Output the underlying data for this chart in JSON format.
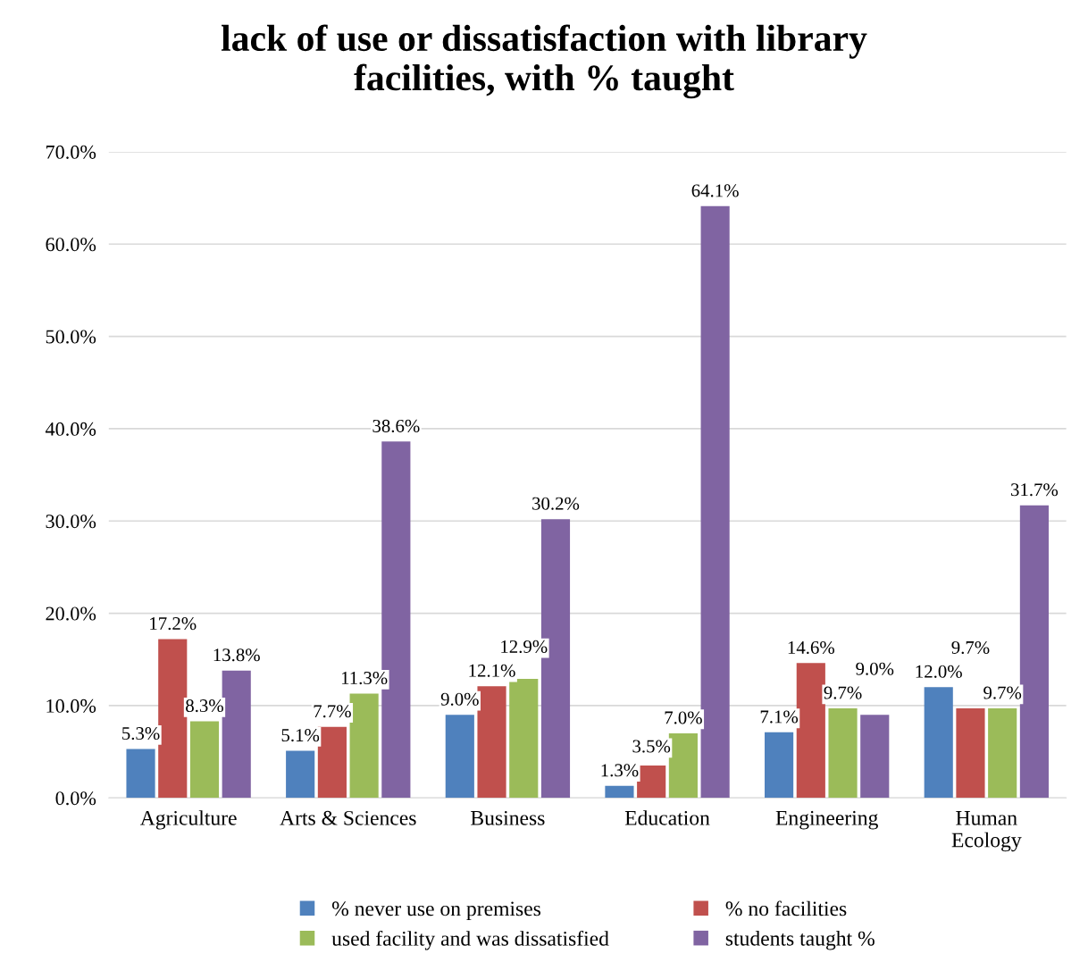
{
  "chart_data": {
    "type": "bar",
    "title": "lack of use or dissatisfaction with library\nfacilities, with % taught",
    "categories": [
      "Agriculture",
      "Arts & Sciences",
      "Business",
      "Education",
      "Engineering",
      "Human\nEcology"
    ],
    "series": [
      {
        "name": "% never use on premises",
        "color": "#4f81bd",
        "values": [
          5.3,
          5.1,
          9.0,
          1.3,
          7.1,
          12.0
        ],
        "value_labels": [
          "5.3%",
          "5.1%",
          "9.0%",
          "1.3%",
          "7.1%",
          "12.0%"
        ]
      },
      {
        "name": "% no facilities",
        "color": "#c0504d",
        "values": [
          17.2,
          7.7,
          12.1,
          3.5,
          14.6,
          9.7
        ],
        "value_labels": [
          "17.2%",
          "7.7%",
          "12.1%",
          "3.5%",
          "14.6%",
          "9.7%"
        ]
      },
      {
        "name": "used facility and was dissatisfied",
        "color": "#9bbb59",
        "values": [
          8.3,
          11.3,
          12.9,
          7.0,
          9.7,
          9.7
        ],
        "value_labels": [
          "8.3%",
          "11.3%",
          "12.9%",
          "7.0%",
          "9.7%",
          "9.7%"
        ]
      },
      {
        "name": "students taught %",
        "color": "#8064a2",
        "values": [
          13.8,
          38.6,
          30.2,
          64.1,
          9.0,
          31.7
        ],
        "value_labels": [
          "13.8%",
          "38.6%",
          "30.2%",
          "64.1%",
          "9.0%",
          "31.7%"
        ]
      }
    ],
    "ylim": [
      0,
      70
    ],
    "yticks": [
      {
        "value": 0,
        "label": "0.0%"
      },
      {
        "value": 10,
        "label": "10.0%"
      },
      {
        "value": 20,
        "label": "20.0%"
      },
      {
        "value": 30,
        "label": "30.0%"
      },
      {
        "value": 40,
        "label": "40.0%"
      },
      {
        "value": 50,
        "label": "50.0%"
      },
      {
        "value": 60,
        "label": "60.0%"
      },
      {
        "value": 70,
        "label": "70.0%"
      }
    ],
    "grid": "y",
    "legend": "bottom"
  }
}
